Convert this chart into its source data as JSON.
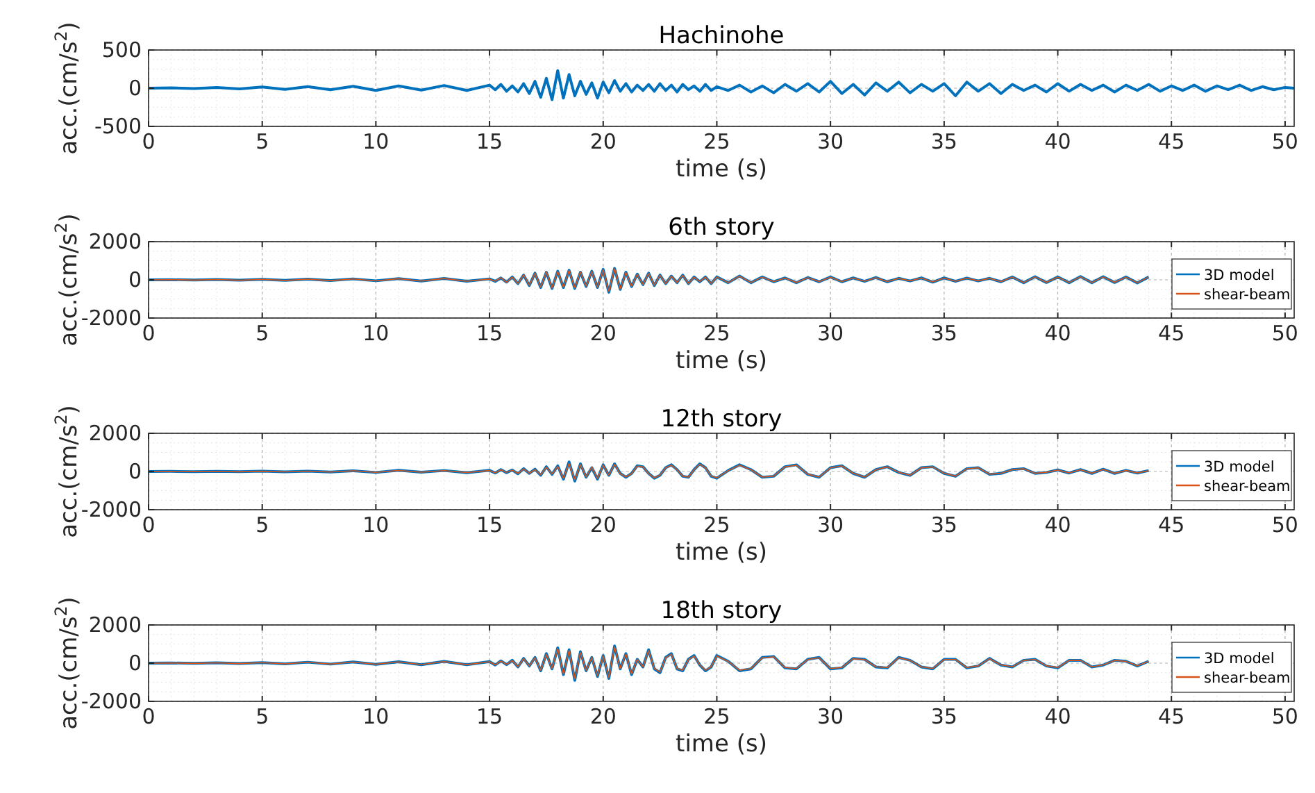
{
  "chart_data": [
    {
      "type": "line",
      "title": "Hachinohe",
      "xlabel": "time (s)",
      "ylabel": "acc.(cm/s$^{2}$)",
      "xlim": [
        0,
        50.4
      ],
      "xticks": [
        0,
        5,
        10,
        15,
        20,
        25,
        30,
        35,
        40,
        45,
        50
      ],
      "ylim": [
        -500,
        500
      ],
      "yticks": [
        -500,
        0,
        500
      ],
      "grid": true,
      "legend": false,
      "x": [
        0,
        1,
        2,
        3,
        4,
        5,
        6,
        7,
        8,
        9,
        10,
        11,
        12,
        13,
        14,
        15,
        15.25,
        15.5,
        15.75,
        16,
        16.25,
        16.5,
        16.75,
        17,
        17.25,
        17.5,
        17.75,
        18,
        18.25,
        18.5,
        18.75,
        19,
        19.25,
        19.5,
        19.75,
        20,
        20.25,
        20.5,
        20.75,
        21,
        21.25,
        21.5,
        21.75,
        22,
        22.25,
        22.5,
        22.75,
        23,
        23.25,
        23.5,
        23.75,
        24,
        24.25,
        24.5,
        24.75,
        25,
        25.5,
        26,
        26.5,
        27,
        27.5,
        28,
        28.5,
        29,
        29.5,
        30,
        30.5,
        31,
        31.5,
        32,
        32.5,
        33,
        33.5,
        34,
        34.5,
        35,
        35.5,
        36,
        36.5,
        37,
        37.5,
        38,
        38.5,
        39,
        39.5,
        40,
        40.5,
        41,
        41.5,
        42,
        42.5,
        43,
        43.5,
        44,
        44.5,
        45,
        45.5,
        46,
        46.5,
        47,
        47.5,
        48,
        48.5,
        49,
        49.5,
        50,
        50.4
      ],
      "series": [
        {
          "color": "#0072bd",
          "values": [
            0,
            5,
            -5,
            10,
            -10,
            15,
            -15,
            20,
            -20,
            25,
            -30,
            30,
            -25,
            35,
            -30,
            40,
            -20,
            50,
            -40,
            30,
            -50,
            60,
            -70,
            90,
            -120,
            130,
            -150,
            230,
            -130,
            180,
            -100,
            90,
            -80,
            70,
            -130,
            80,
            -60,
            100,
            -40,
            60,
            -50,
            40,
            -30,
            50,
            -40,
            60,
            -30,
            40,
            -50,
            50,
            -20,
            30,
            -40,
            50,
            -30,
            20,
            -30,
            40,
            -50,
            30,
            -60,
            50,
            -40,
            60,
            -50,
            90,
            -70,
            50,
            -90,
            70,
            -40,
            80,
            -60,
            50,
            -40,
            60,
            -100,
            80,
            -40,
            60,
            -70,
            50,
            -30,
            40,
            -50,
            60,
            -40,
            50,
            -30,
            40,
            -50,
            40,
            -30,
            50,
            -40,
            30,
            -30,
            40,
            -40,
            30,
            -20,
            40,
            -30,
            20,
            -20,
            10,
            0
          ]
        }
      ]
    },
    {
      "type": "line",
      "title": "6th story",
      "xlabel": "time (s)",
      "ylabel": "acc.(cm/s$^{2}$)",
      "xlim": [
        0,
        50.4
      ],
      "xticks": [
        0,
        5,
        10,
        15,
        20,
        25,
        30,
        35,
        40,
        45,
        50
      ],
      "ylim": [
        -2000,
        2000
      ],
      "yticks": [
        -2000,
        0,
        2000
      ],
      "grid": true,
      "legend": "right",
      "x": [
        0,
        1,
        2,
        3,
        4,
        5,
        6,
        7,
        8,
        9,
        10,
        11,
        12,
        13,
        14,
        15,
        15.25,
        15.5,
        15.75,
        16,
        16.25,
        16.5,
        16.75,
        17,
        17.25,
        17.5,
        17.75,
        18,
        18.25,
        18.5,
        18.75,
        19,
        19.25,
        19.5,
        19.75,
        20,
        20.25,
        20.5,
        20.75,
        21,
        21.25,
        21.5,
        21.75,
        22,
        22.25,
        22.5,
        22.75,
        23,
        23.25,
        23.5,
        23.75,
        24,
        24.25,
        24.5,
        24.75,
        25,
        25.5,
        26,
        26.5,
        27,
        27.5,
        28,
        28.5,
        29,
        29.5,
        30,
        30.5,
        31,
        31.5,
        32,
        32.5,
        33,
        33.5,
        34,
        34.5,
        35,
        35.5,
        36,
        36.5,
        37,
        37.5,
        38,
        38.5,
        39,
        39.5,
        40,
        40.5,
        41,
        41.5,
        42,
        42.5,
        43,
        43.5,
        44
      ],
      "series": [
        {
          "name": "3D model",
          "color": "#0072bd",
          "values": [
            0,
            10,
            -10,
            20,
            -20,
            30,
            -30,
            40,
            -40,
            50,
            -50,
            60,
            -60,
            70,
            -70,
            50,
            -80,
            100,
            -120,
            150,
            -200,
            250,
            -300,
            350,
            -400,
            400,
            -450,
            450,
            -400,
            500,
            -450,
            400,
            -350,
            450,
            -400,
            550,
            -650,
            600,
            -500,
            400,
            -350,
            300,
            -250,
            350,
            -300,
            250,
            -200,
            200,
            -150,
            250,
            -200,
            150,
            -100,
            150,
            -200,
            150,
            -150,
            200,
            -150,
            150,
            -100,
            100,
            -150,
            120,
            -100,
            150,
            -100,
            100,
            -80,
            120,
            -100,
            80,
            -60,
            100,
            -120,
            100,
            -80,
            90,
            -60,
            80,
            -100,
            150,
            -150,
            160,
            -140,
            150,
            -150,
            170,
            -150,
            160,
            -140,
            150,
            -160,
            150
          ]
        },
        {
          "name": "shear-beam",
          "color": "#d95319",
          "values": [
            0,
            8,
            -12,
            18,
            -22,
            28,
            -32,
            38,
            -42,
            48,
            -52,
            58,
            -62,
            68,
            -72,
            40,
            -70,
            110,
            -130,
            140,
            -190,
            260,
            -280,
            340,
            -380,
            420,
            -430,
            430,
            -380,
            480,
            -430,
            420,
            -330,
            430,
            -380,
            520,
            -600,
            580,
            -480,
            380,
            -330,
            280,
            -240,
            330,
            -280,
            240,
            -190,
            190,
            -140,
            240,
            -190,
            140,
            -90,
            140,
            -190,
            140,
            -140,
            190,
            -140,
            140,
            -90,
            90,
            -140,
            110,
            -90,
            140,
            -90,
            90,
            -70,
            110,
            -90,
            70,
            -50,
            90,
            -110,
            90,
            -70,
            80,
            -50,
            70,
            -90,
            140,
            -140,
            150,
            -130,
            140,
            -140,
            160,
            -140,
            150,
            -130,
            140,
            -150,
            140
          ]
        }
      ]
    },
    {
      "type": "line",
      "title": "12th story",
      "xlabel": "time (s)",
      "ylabel": "acc.(cm/s$^{2}$)",
      "xlim": [
        0,
        50.4
      ],
      "xticks": [
        0,
        5,
        10,
        15,
        20,
        25,
        30,
        35,
        40,
        45,
        50
      ],
      "ylim": [
        -2000,
        2000
      ],
      "yticks": [
        -2000,
        0,
        2000
      ],
      "grid": true,
      "legend": "right",
      "x": [
        0,
        1,
        2,
        3,
        4,
        5,
        6,
        7,
        8,
        9,
        10,
        11,
        12,
        13,
        14,
        15,
        15.25,
        15.5,
        15.75,
        16,
        16.25,
        16.5,
        16.75,
        17,
        17.25,
        17.5,
        17.75,
        18,
        18.25,
        18.5,
        18.75,
        19,
        19.25,
        19.5,
        19.75,
        20,
        20.25,
        20.5,
        20.75,
        21,
        21.25,
        21.5,
        21.75,
        22,
        22.25,
        22.5,
        22.75,
        23,
        23.25,
        23.5,
        23.75,
        24,
        24.25,
        24.5,
        24.75,
        25,
        25.5,
        26,
        26.5,
        27,
        27.5,
        28,
        28.5,
        29,
        29.5,
        30,
        30.5,
        31,
        31.5,
        32,
        32.5,
        33,
        33.5,
        34,
        34.5,
        35,
        35.5,
        36,
        36.5,
        37,
        37.5,
        38,
        38.5,
        39,
        39.5,
        40,
        40.5,
        41,
        41.5,
        42,
        42.5,
        43,
        43.5,
        44
      ],
      "series": [
        {
          "name": "3D model",
          "color": "#0072bd",
          "values": [
            0,
            5,
            -5,
            10,
            -10,
            15,
            -15,
            20,
            -30,
            40,
            -50,
            60,
            -40,
            50,
            -60,
            60,
            -80,
            100,
            -60,
            80,
            -120,
            150,
            -100,
            120,
            -200,
            250,
            -150,
            300,
            -400,
            500,
            -500,
            400,
            -300,
            200,
            -400,
            350,
            -200,
            400,
            -100,
            -300,
            -100,
            300,
            250,
            -100,
            -350,
            -200,
            200,
            350,
            100,
            -250,
            -300,
            100,
            400,
            200,
            -250,
            -350,
            50,
            350,
            100,
            -300,
            -250,
            250,
            350,
            -150,
            -300,
            200,
            300,
            -100,
            -300,
            100,
            250,
            -50,
            -200,
            200,
            250,
            -100,
            -250,
            150,
            200,
            -150,
            -100,
            100,
            150,
            -100,
            -50,
            80,
            -80,
            100,
            -100,
            120,
            -100,
            60,
            -80,
            50
          ]
        },
        {
          "name": "shear-beam",
          "color": "#d95319",
          "values": [
            0,
            4,
            -6,
            8,
            -12,
            14,
            -16,
            18,
            -26,
            36,
            -46,
            54,
            -38,
            46,
            -54,
            50,
            -70,
            90,
            -50,
            70,
            -100,
            130,
            -90,
            100,
            -170,
            220,
            -130,
            260,
            -350,
            420,
            -430,
            360,
            -280,
            220,
            -360,
            330,
            -190,
            380,
            -120,
            -280,
            -110,
            280,
            240,
            -110,
            -330,
            -190,
            190,
            330,
            90,
            -240,
            -290,
            90,
            380,
            190,
            -240,
            -330,
            40,
            330,
            90,
            -290,
            -240,
            240,
            330,
            -140,
            -290,
            190,
            290,
            -90,
            -290,
            90,
            240,
            -40,
            -190,
            190,
            240,
            -90,
            -240,
            140,
            190,
            -140,
            -90,
            90,
            140,
            -90,
            -40,
            70,
            -70,
            90,
            -90,
            110,
            -90,
            50,
            -70,
            40
          ]
        }
      ]
    },
    {
      "type": "line",
      "title": "18th story",
      "xlabel": "time (s)",
      "ylabel": "acc.(cm/s$^{2}$)",
      "xlim": [
        0,
        50.4
      ],
      "xticks": [
        0,
        5,
        10,
        15,
        20,
        25,
        30,
        35,
        40,
        45,
        50
      ],
      "ylim": [
        -2000,
        2000
      ],
      "yticks": [
        -2000,
        0,
        2000
      ],
      "grid": true,
      "legend": "right",
      "x": [
        0,
        1,
        2,
        3,
        4,
        5,
        6,
        7,
        8,
        9,
        10,
        11,
        12,
        13,
        14,
        15,
        15.25,
        15.5,
        15.75,
        16,
        16.25,
        16.5,
        16.75,
        17,
        17.25,
        17.5,
        17.75,
        18,
        18.25,
        18.5,
        18.75,
        19,
        19.25,
        19.5,
        19.75,
        20,
        20.25,
        20.5,
        20.75,
        21,
        21.25,
        21.5,
        21.75,
        22,
        22.25,
        22.5,
        22.75,
        23,
        23.25,
        23.5,
        23.75,
        24,
        24.25,
        24.5,
        24.75,
        25,
        25.5,
        26,
        26.5,
        27,
        27.5,
        28,
        28.5,
        29,
        29.5,
        30,
        30.5,
        31,
        31.5,
        32,
        32.5,
        33,
        33.5,
        34,
        34.5,
        35,
        35.5,
        36,
        36.5,
        37,
        37.5,
        38,
        38.5,
        39,
        39.5,
        40,
        40.5,
        41,
        41.5,
        42,
        42.5,
        43,
        43.5,
        44
      ],
      "series": [
        {
          "name": "3D model",
          "color": "#0072bd",
          "values": [
            0,
            10,
            -10,
            20,
            -20,
            30,
            -40,
            50,
            -50,
            60,
            -60,
            70,
            -80,
            90,
            -80,
            80,
            -100,
            120,
            -80,
            150,
            -200,
            250,
            -150,
            300,
            -400,
            500,
            -300,
            800,
            -600,
            700,
            -900,
            600,
            -400,
            300,
            -700,
            400,
            -800,
            900,
            -300,
            500,
            -600,
            200,
            -200,
            700,
            -300,
            -500,
            300,
            500,
            -300,
            -400,
            200,
            400,
            -100,
            -400,
            -200,
            400,
            100,
            -400,
            -300,
            300,
            350,
            -250,
            -300,
            200,
            300,
            -300,
            -250,
            250,
            200,
            -200,
            -250,
            300,
            150,
            -200,
            -300,
            200,
            200,
            -250,
            -150,
            250,
            -100,
            -200,
            150,
            200,
            -150,
            -250,
            150,
            150,
            -200,
            -100,
            150,
            100,
            -150,
            100
          ]
        },
        {
          "name": "shear-beam",
          "color": "#d95319",
          "values": [
            0,
            8,
            -12,
            18,
            -22,
            28,
            -36,
            46,
            -46,
            56,
            -56,
            66,
            -74,
            84,
            -76,
            70,
            -90,
            110,
            -70,
            130,
            -180,
            230,
            -140,
            280,
            -370,
            460,
            -280,
            750,
            -560,
            660,
            -820,
            560,
            -380,
            290,
            -650,
            380,
            -740,
            840,
            -290,
            470,
            -560,
            190,
            -190,
            650,
            -280,
            -470,
            280,
            470,
            -280,
            -370,
            190,
            370,
            -90,
            -370,
            -190,
            370,
            90,
            -370,
            -280,
            280,
            330,
            -230,
            -280,
            190,
            280,
            -280,
            -230,
            230,
            190,
            -190,
            -230,
            280,
            140,
            -190,
            -280,
            190,
            190,
            -230,
            -140,
            230,
            -90,
            -190,
            140,
            190,
            -140,
            -230,
            140,
            140,
            -190,
            -90,
            140,
            90,
            -140,
            90
          ]
        }
      ]
    }
  ]
}
